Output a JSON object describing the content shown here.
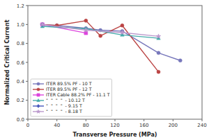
{
  "chart_data": {
    "type": "line",
    "xlabel": "Transverse Pressure (MPa)",
    "ylabel": "Normalized Critical Current",
    "xlim": [
      0,
      240
    ],
    "ylim": [
      0,
      1.2
    ],
    "xticks": [
      0,
      40,
      80,
      120,
      160,
      200,
      240
    ],
    "yticks": [
      {
        "value": 0,
        "label": "0.0"
      },
      0.2,
      0.4,
      0.6,
      0.8,
      {
        "value": 1.0,
        "label": "1.0"
      },
      1.2
    ],
    "grid": false,
    "legend": "lower left",
    "series": [
      {
        "name": "ITER 89.5% PF - 10 T",
        "color": "#7777bb",
        "marker": "circle",
        "line_style": "solid",
        "x": [
          20,
          40,
          80,
          100,
          130,
          180,
          210
        ],
        "values": [
          1.0,
          0.99,
          0.96,
          0.94,
          0.93,
          0.7,
          0.62
        ]
      },
      {
        "name": "ITER 89.5% PF - 12 T",
        "color": "#bb4444",
        "marker": "circle",
        "line_style": "solid",
        "x": [
          20,
          40,
          80,
          100,
          130,
          180
        ],
        "values": [
          1.0,
          0.99,
          1.04,
          0.88,
          0.99,
          0.5
        ]
      },
      {
        "name": "ITER Cable 88.2% PF - 11.1 T",
        "color": "#dd44dd",
        "marker": "square",
        "line_style": "solid",
        "x": [
          20,
          80
        ],
        "values": [
          1.0,
          0.91
        ]
      },
      {
        "name": "\"  \"  \"  \"  - 10.12 T",
        "color": "#44aaaa",
        "marker": "triangle",
        "line_style": "solid",
        "x": [
          20,
          80,
          130,
          180
        ],
        "values": [
          0.98,
          0.955,
          0.89,
          0.855
        ]
      },
      {
        "name": "\"  \"  \"  \"  - 9.15 T",
        "color": "#4455bb",
        "marker": "diamond",
        "line_style": "solid",
        "x": [
          20
        ],
        "values": [
          1.0
        ]
      },
      {
        "name": "\"  \"  \"  \"  - 8.18 T",
        "color": "#bb99cc",
        "marker": "star",
        "line_style": "solid",
        "x": [
          20,
          80,
          130,
          180
        ],
        "values": [
          1.0,
          0.94,
          0.915,
          0.875
        ]
      }
    ]
  }
}
